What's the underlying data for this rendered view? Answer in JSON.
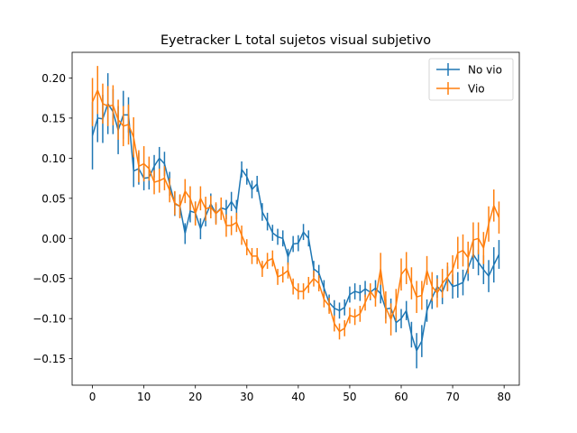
{
  "chart_data": {
    "type": "line",
    "title": "Eyetracker L total sujetos visual subjetivo",
    "xlabel": "",
    "ylabel": "",
    "xlim": [
      -3.95,
      82.95
    ],
    "ylim": [
      -0.183,
      0.232
    ],
    "xticks": [
      0,
      10,
      20,
      30,
      40,
      50,
      60,
      70,
      80
    ],
    "yticks": [
      -0.15,
      -0.1,
      -0.05,
      0.0,
      0.05,
      0.1,
      0.15,
      0.2
    ],
    "ytick_labels": [
      "−0.15",
      "−0.10",
      "−0.05",
      "0.00",
      "0.05",
      "0.10",
      "0.15",
      "0.20"
    ],
    "grid": false,
    "legend_position": "top-right",
    "errorbars": true,
    "series": [
      {
        "name": "No vio",
        "color": "#1f77b4",
        "x": [
          0,
          1,
          2,
          3,
          4,
          5,
          6,
          7,
          8,
          9,
          10,
          11,
          12,
          13,
          14,
          15,
          16,
          17,
          18,
          19,
          20,
          21,
          22,
          23,
          24,
          25,
          26,
          27,
          28,
          29,
          30,
          31,
          32,
          33,
          34,
          35,
          36,
          37,
          38,
          39,
          40,
          41,
          42,
          43,
          44,
          45,
          46,
          47,
          48,
          49,
          50,
          51,
          52,
          53,
          54,
          55,
          56,
          57,
          58,
          59,
          60,
          61,
          62,
          63,
          64,
          65,
          66,
          67,
          68,
          69,
          70,
          71,
          72,
          73,
          74,
          75,
          76,
          77,
          78,
          79
        ],
        "y": [
          0.128,
          0.15,
          0.149,
          0.168,
          0.158,
          0.135,
          0.154,
          0.154,
          0.084,
          0.087,
          0.075,
          0.076,
          0.09,
          0.1,
          0.093,
          0.068,
          0.043,
          0.04,
          0.006,
          0.034,
          0.032,
          0.012,
          0.028,
          0.043,
          0.031,
          0.038,
          0.036,
          0.046,
          0.036,
          0.086,
          0.077,
          0.061,
          0.068,
          0.033,
          0.021,
          0.007,
          0.002,
          0.0,
          -0.023,
          -0.007,
          -0.006,
          0.008,
          0.0,
          -0.038,
          -0.043,
          -0.062,
          -0.08,
          -0.087,
          -0.09,
          -0.086,
          -0.07,
          -0.066,
          -0.068,
          -0.063,
          -0.067,
          -0.062,
          -0.069,
          -0.088,
          -0.087,
          -0.105,
          -0.1,
          -0.09,
          -0.12,
          -0.14,
          -0.128,
          -0.09,
          -0.074,
          -0.06,
          -0.067,
          -0.05,
          -0.06,
          -0.058,
          -0.055,
          -0.037,
          -0.02,
          -0.03,
          -0.039,
          -0.047,
          -0.033,
          -0.02
        ],
        "err": [
          0.042,
          0.03,
          0.03,
          0.038,
          0.028,
          0.03,
          0.03,
          0.022,
          0.02,
          0.02,
          0.015,
          0.015,
          0.014,
          0.014,
          0.015,
          0.015,
          0.015,
          0.014,
          0.013,
          0.014,
          0.014,
          0.013,
          0.013,
          0.013,
          0.012,
          0.012,
          0.012,
          0.012,
          0.012,
          0.01,
          0.01,
          0.011,
          0.01,
          0.011,
          0.011,
          0.01,
          0.01,
          0.01,
          0.01,
          0.01,
          0.01,
          0.01,
          0.01,
          0.01,
          0.01,
          0.01,
          0.01,
          0.01,
          0.01,
          0.01,
          0.01,
          0.01,
          0.01,
          0.01,
          0.01,
          0.01,
          0.012,
          0.012,
          0.012,
          0.012,
          0.012,
          0.012,
          0.016,
          0.022,
          0.02,
          0.014,
          0.014,
          0.014,
          0.015,
          0.015,
          0.015,
          0.016,
          0.016,
          0.016,
          0.018,
          0.016,
          0.018,
          0.02,
          0.022,
          0.018
        ]
      },
      {
        "name": "Vio",
        "color": "#ff7f0e",
        "x": [
          0,
          1,
          2,
          3,
          4,
          5,
          6,
          7,
          8,
          9,
          10,
          11,
          12,
          13,
          14,
          15,
          16,
          17,
          18,
          19,
          20,
          21,
          22,
          23,
          24,
          25,
          26,
          27,
          28,
          29,
          30,
          31,
          32,
          33,
          34,
          35,
          36,
          37,
          38,
          39,
          40,
          41,
          42,
          43,
          44,
          45,
          46,
          47,
          48,
          49,
          50,
          51,
          52,
          53,
          54,
          55,
          56,
          57,
          58,
          59,
          60,
          61,
          62,
          63,
          64,
          65,
          66,
          67,
          68,
          69,
          70,
          71,
          72,
          73,
          74,
          75,
          76,
          77,
          78,
          79
        ],
        "y": [
          0.17,
          0.185,
          0.168,
          0.165,
          0.166,
          0.148,
          0.14,
          0.142,
          0.126,
          0.09,
          0.093,
          0.087,
          0.07,
          0.072,
          0.075,
          0.06,
          0.044,
          0.04,
          0.059,
          0.05,
          0.031,
          0.05,
          0.037,
          0.039,
          0.031,
          0.037,
          0.016,
          0.016,
          0.02,
          0.004,
          -0.011,
          -0.022,
          -0.022,
          -0.038,
          -0.028,
          -0.025,
          -0.048,
          -0.045,
          -0.04,
          -0.06,
          -0.066,
          -0.066,
          -0.058,
          -0.05,
          -0.056,
          -0.076,
          -0.084,
          -0.106,
          -0.116,
          -0.112,
          -0.096,
          -0.098,
          -0.094,
          -0.08,
          -0.066,
          -0.075,
          -0.038,
          -0.086,
          -0.101,
          -0.083,
          -0.045,
          -0.037,
          -0.056,
          -0.073,
          -0.071,
          -0.04,
          -0.06,
          -0.068,
          -0.056,
          -0.048,
          -0.039,
          -0.018,
          -0.015,
          -0.024,
          -0.002,
          0.0,
          -0.012,
          0.018,
          0.041,
          0.026
        ],
        "err": [
          0.03,
          0.03,
          0.025,
          0.025,
          0.025,
          0.025,
          0.025,
          0.025,
          0.025,
          0.02,
          0.022,
          0.015,
          0.015,
          0.015,
          0.015,
          0.015,
          0.015,
          0.015,
          0.015,
          0.015,
          0.015,
          0.015,
          0.015,
          0.014,
          0.014,
          0.014,
          0.014,
          0.012,
          0.012,
          0.012,
          0.01,
          0.01,
          0.01,
          0.01,
          0.01,
          0.01,
          0.01,
          0.01,
          0.01,
          0.01,
          0.01,
          0.01,
          0.01,
          0.01,
          0.01,
          0.01,
          0.01,
          0.01,
          0.01,
          0.01,
          0.01,
          0.01,
          0.01,
          0.01,
          0.01,
          0.01,
          0.02,
          0.02,
          0.02,
          0.02,
          0.02,
          0.02,
          0.02,
          0.02,
          0.018,
          0.018,
          0.018,
          0.018,
          0.018,
          0.018,
          0.018,
          0.02,
          0.02,
          0.02,
          0.022,
          0.02,
          0.02,
          0.022,
          0.02,
          0.02
        ]
      }
    ]
  }
}
